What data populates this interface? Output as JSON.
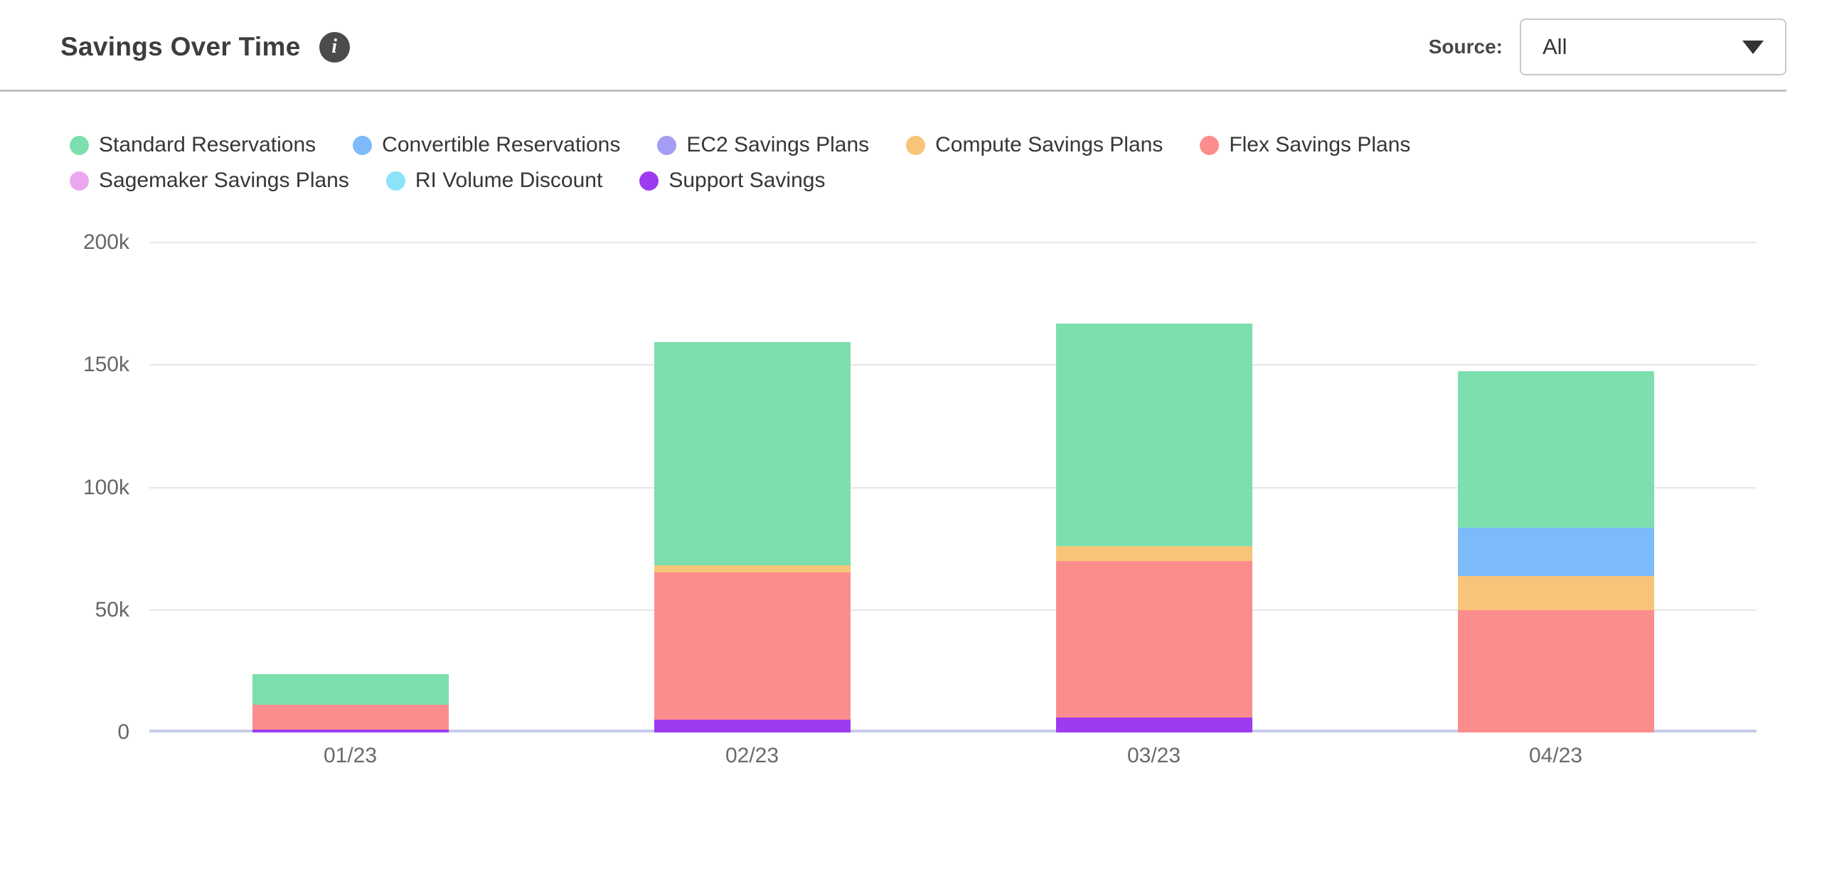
{
  "header": {
    "title": "Savings Over Time",
    "info_glyph": "i",
    "source_label": "Source:",
    "source_value": "All"
  },
  "chart_data": {
    "type": "bar",
    "stacked": true,
    "title": "Savings Over Time",
    "categories": [
      "01/23",
      "02/23",
      "03/23",
      "04/23"
    ],
    "series": [
      {
        "name": "Standard Reservations",
        "color": "#7cdfad",
        "values": [
          12500,
          91000,
          91000,
          64000
        ]
      },
      {
        "name": "Convertible Reservations",
        "color": "#7dbafa",
        "values": [
          0,
          0,
          0,
          19500
        ]
      },
      {
        "name": "EC2 Savings Plans",
        "color": "#a39ef4",
        "values": [
          0,
          0,
          0,
          0
        ]
      },
      {
        "name": "Compute Savings Plans",
        "color": "#f8c479",
        "values": [
          0,
          3000,
          6000,
          14000
        ]
      },
      {
        "name": "Flex Savings Plans",
        "color": "#fc8d8d",
        "values": [
          10000,
          60000,
          64000,
          50000
        ]
      },
      {
        "name": "Sagemaker Savings Plans",
        "color": "#eca6ef",
        "values": [
          0,
          0,
          0,
          0
        ]
      },
      {
        "name": "RI Volume Discount",
        "color": "#8ae3f9",
        "values": [
          0,
          0,
          0,
          0
        ]
      },
      {
        "name": "Support Savings",
        "color": "#9c3bf0",
        "values": [
          1200,
          5300,
          6000,
          0
        ]
      }
    ],
    "stack_order": "last-series-at-bottom",
    "ylim": [
      0,
      200000
    ],
    "yticks": [
      {
        "value": 0,
        "label": "0"
      },
      {
        "value": 50000,
        "label": "50k"
      },
      {
        "value": 100000,
        "label": "100k"
      },
      {
        "value": 150000,
        "label": "150k"
      },
      {
        "value": 200000,
        "label": "200k"
      }
    ],
    "xlabel": "",
    "ylabel": "",
    "grid": true,
    "legend_position": "top"
  },
  "style": {
    "axis_line_color": "#c6cde9",
    "gridline_color": "#e7e7e7",
    "tick_text_color": "#666666",
    "title_color": "#3d3d3d",
    "divider_color": "#c2c2c2"
  }
}
